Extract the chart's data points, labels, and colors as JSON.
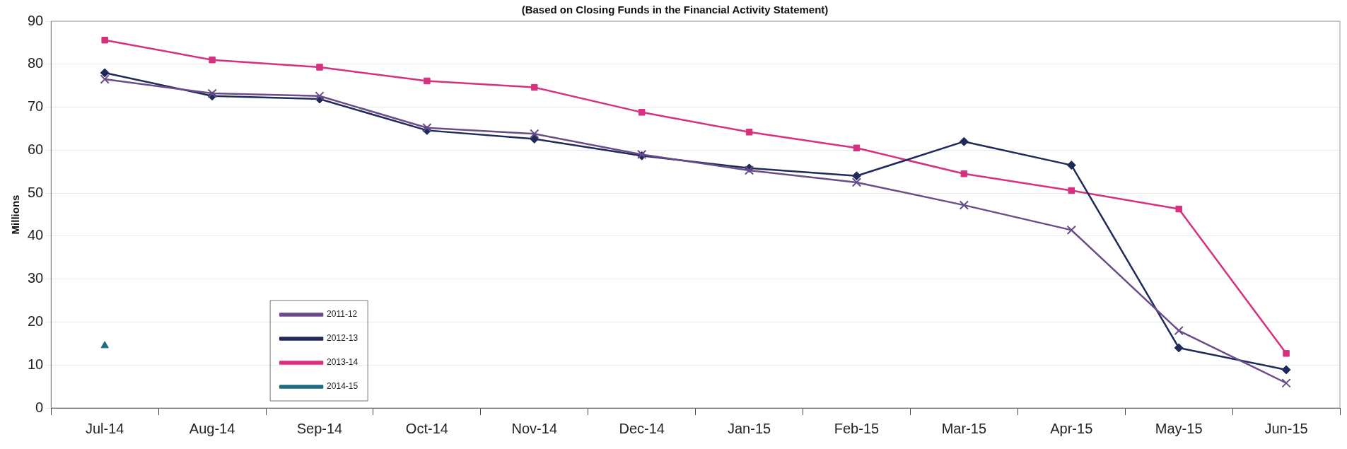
{
  "chart_data": {
    "type": "line",
    "subtitle": "(Based on Closing Funds in the Financial Activity Statement)",
    "ylabel": "Millions",
    "categories": [
      "Jul-14",
      "Aug-14",
      "Sep-14",
      "Oct-14",
      "Nov-14",
      "Dec-14",
      "Jan-15",
      "Feb-15",
      "Mar-15",
      "Apr-15",
      "May-15",
      "Jun-15"
    ],
    "series": [
      {
        "name": "2011-12",
        "color": "#6b4c8a",
        "marker": "cross",
        "values": [
          76.5,
          73.2,
          72.6,
          65.2,
          63.8,
          59.0,
          55.3,
          52.5,
          47.2,
          41.4,
          18.0,
          5.8
        ]
      },
      {
        "name": "2012-13",
        "color": "#1f2a5a",
        "marker": "diamond",
        "values": [
          78.0,
          72.6,
          71.9,
          64.6,
          62.6,
          58.7,
          55.8,
          54.0,
          62.0,
          56.5,
          14.0,
          8.9
        ]
      },
      {
        "name": "2013-14",
        "color": "#d6307e",
        "marker": "square",
        "values": [
          85.6,
          81.0,
          79.3,
          76.1,
          74.6,
          68.8,
          64.2,
          60.5,
          54.5,
          50.6,
          46.3,
          12.7
        ]
      },
      {
        "name": "2014-15",
        "color": "#1f6b80",
        "marker": "triangle",
        "values": [
          14.5,
          null,
          null,
          null,
          null,
          null,
          null,
          null,
          null,
          null,
          null,
          null
        ]
      }
    ],
    "ylim": [
      0,
      90
    ],
    "yticks": [
      0,
      10,
      20,
      30,
      40,
      50,
      60,
      70,
      80,
      90
    ],
    "grid": "y",
    "legend": "bottom left",
    "line_style": "solid"
  }
}
